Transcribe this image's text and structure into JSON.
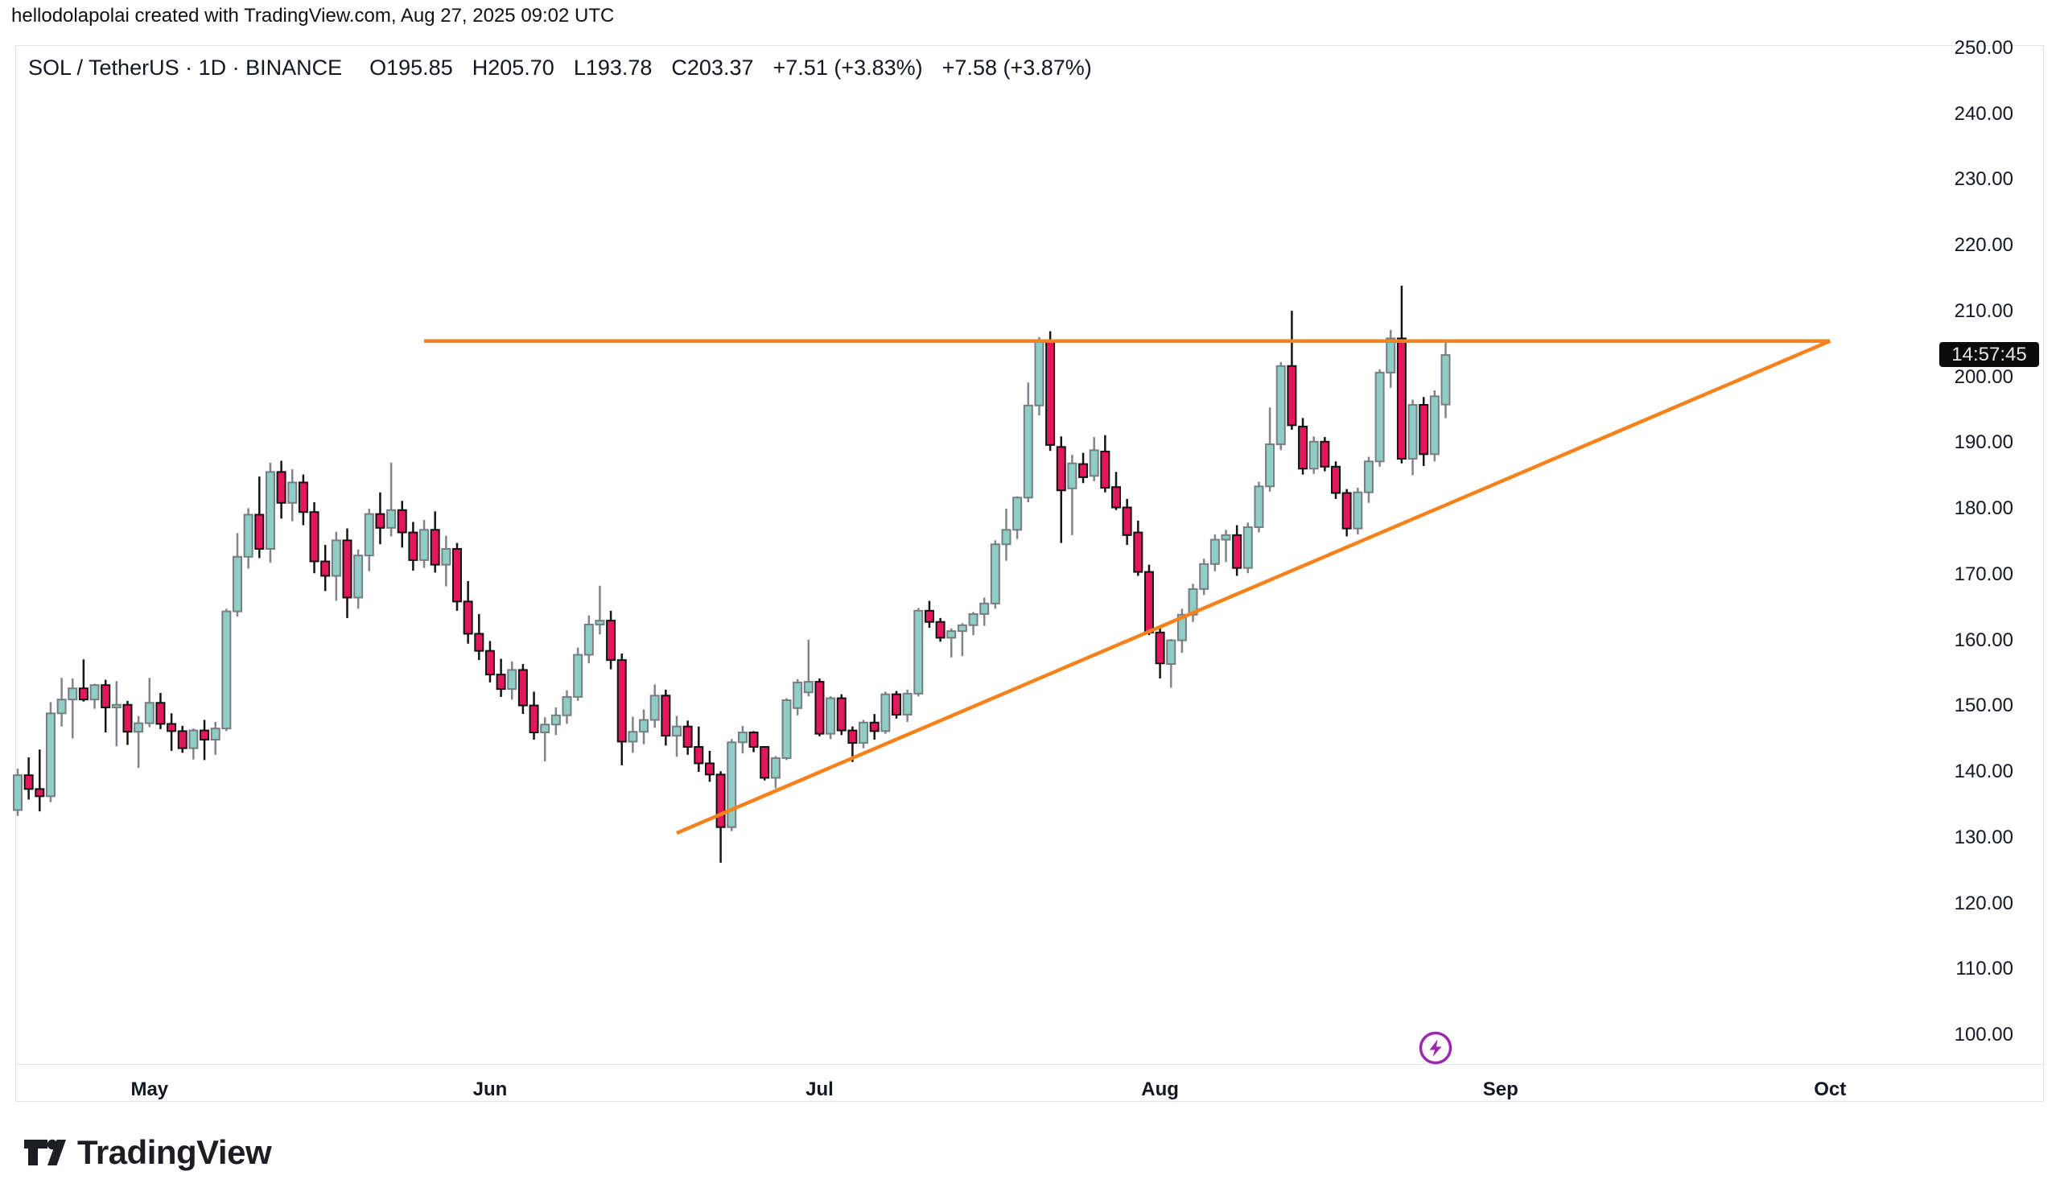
{
  "header": {
    "attribution": "hellodolapolai created with TradingView.com, Aug 27, 2025 09:02 UTC"
  },
  "symbol_bar": {
    "title": "SOL / TetherUS · 1D · BINANCE",
    "open": "O195.85",
    "high": "H205.70",
    "low": "L193.78",
    "close": "C203.37",
    "change_abs": "+7.51 (+3.83%)",
    "change_pct": "+7.58 (+3.87%)"
  },
  "price_axis": {
    "countdown": "14:57:45",
    "tick_values": [
      250,
      240,
      230,
      220,
      210,
      200,
      190,
      180,
      170,
      160,
      150,
      140,
      130,
      120,
      110,
      100
    ]
  },
  "time_axis": {
    "months": [
      {
        "label": "May",
        "date": "2025-05-01"
      },
      {
        "label": "Jun",
        "date": "2025-06-01"
      },
      {
        "label": "Jul",
        "date": "2025-07-01"
      },
      {
        "label": "Aug",
        "date": "2025-08-01"
      },
      {
        "label": "Sep",
        "date": "2025-09-01"
      },
      {
        "label": "Oct",
        "date": "2025-10-01"
      }
    ]
  },
  "footer": {
    "logo_text": "TradingView"
  },
  "colors": {
    "up_body": "#8fcec5",
    "up_border": "#787c84",
    "up_wick": "#81848b",
    "down_body": "#e5175c",
    "down_border": "#121212",
    "down_wick": "#141414",
    "trendline": "#f7821b",
    "text": "#131722",
    "frame": "#e0e3eb",
    "badge_bg": "#0b0b0b",
    "badge_text": "#e6e6e6",
    "lightning": "#9c27b0"
  },
  "chart_data": {
    "type": "candlestick",
    "title": "SOL / TetherUS · 1D · BINANCE",
    "symbol": "SOL/USDT",
    "exchange": "BINANCE",
    "interval": "1D",
    "current": {
      "open": 195.85,
      "high": 205.7,
      "low": 193.78,
      "close": 203.37,
      "change": "+7.51 (+3.83%)",
      "change_ext": "+7.58 (+3.87%)"
    },
    "ylim": [
      100,
      250
    ],
    "y_ticks_step": 10,
    "grid": false,
    "start_date": "2025-04-19",
    "candles": [
      [
        "2025-04-19",
        134.2,
        140.5,
        133.3,
        139.5
      ],
      [
        "2025-04-20",
        139.5,
        142.2,
        135.8,
        137.4
      ],
      [
        "2025-04-21",
        137.4,
        143.4,
        134.0,
        136.3
      ],
      [
        "2025-04-22",
        136.3,
        150.6,
        135.4,
        148.9
      ],
      [
        "2025-04-23",
        148.9,
        154.3,
        146.9,
        151.0
      ],
      [
        "2025-04-24",
        151.0,
        154.2,
        145.1,
        152.7
      ],
      [
        "2025-04-25",
        152.7,
        157.1,
        150.7,
        151.0
      ],
      [
        "2025-04-26",
        151.0,
        153.4,
        149.6,
        153.2
      ],
      [
        "2025-04-27",
        153.2,
        154.0,
        146.0,
        149.8
      ],
      [
        "2025-04-28",
        149.8,
        153.8,
        143.9,
        150.2
      ],
      [
        "2025-04-29",
        150.2,
        150.8,
        144.1,
        146.1
      ],
      [
        "2025-04-30",
        146.1,
        148.5,
        140.6,
        147.4
      ],
      [
        "2025-05-01",
        147.4,
        154.3,
        146.8,
        150.5
      ],
      [
        "2025-05-02",
        150.5,
        152.0,
        146.5,
        147.3
      ],
      [
        "2025-05-03",
        147.3,
        148.9,
        143.2,
        146.2
      ],
      [
        "2025-05-04",
        146.2,
        147.0,
        142.9,
        143.6
      ],
      [
        "2025-05-05",
        143.6,
        146.6,
        141.9,
        146.3
      ],
      [
        "2025-05-06",
        146.3,
        147.9,
        141.8,
        144.9
      ],
      [
        "2025-05-07",
        144.9,
        147.6,
        142.6,
        146.6
      ],
      [
        "2025-05-08",
        146.6,
        164.8,
        146.2,
        164.4
      ],
      [
        "2025-05-09",
        164.4,
        176.3,
        163.6,
        172.7
      ],
      [
        "2025-05-10",
        172.7,
        180.1,
        170.9,
        179.1
      ],
      [
        "2025-05-11",
        179.1,
        184.9,
        172.5,
        173.9
      ],
      [
        "2025-05-12",
        173.9,
        187.0,
        171.8,
        185.6
      ],
      [
        "2025-05-13",
        185.6,
        187.3,
        178.5,
        180.9
      ],
      [
        "2025-05-14",
        180.9,
        186.0,
        178.1,
        184.0
      ],
      [
        "2025-05-15",
        184.0,
        185.2,
        177.5,
        179.5
      ],
      [
        "2025-05-16",
        179.5,
        181.0,
        170.2,
        172.0
      ],
      [
        "2025-05-17",
        172.0,
        174.5,
        167.5,
        169.8
      ],
      [
        "2025-05-18",
        169.8,
        176.5,
        166.0,
        175.2
      ],
      [
        "2025-05-19",
        175.2,
        177.0,
        163.4,
        166.5
      ],
      [
        "2025-05-20",
        166.5,
        173.8,
        164.8,
        172.9
      ],
      [
        "2025-05-21",
        172.9,
        180.0,
        170.5,
        179.2
      ],
      [
        "2025-05-22",
        179.2,
        182.5,
        174.6,
        177.1
      ],
      [
        "2025-05-23",
        177.1,
        187.0,
        175.8,
        179.8
      ],
      [
        "2025-05-24",
        179.8,
        181.2,
        174.1,
        176.4
      ],
      [
        "2025-05-25",
        176.4,
        178.0,
        170.6,
        172.2
      ],
      [
        "2025-05-26",
        172.2,
        178.3,
        171.0,
        176.8
      ],
      [
        "2025-05-27",
        176.8,
        179.6,
        170.3,
        171.5
      ],
      [
        "2025-05-28",
        171.5,
        175.9,
        168.2,
        173.9
      ],
      [
        "2025-05-29",
        173.9,
        174.8,
        164.5,
        165.9
      ],
      [
        "2025-05-30",
        165.9,
        169.0,
        159.5,
        161.0
      ],
      [
        "2025-05-31",
        161.0,
        164.0,
        157.0,
        158.4
      ],
      [
        "2025-06-01",
        158.4,
        159.9,
        153.6,
        154.8
      ],
      [
        "2025-06-02",
        154.8,
        157.2,
        151.4,
        152.6
      ],
      [
        "2025-06-03",
        152.6,
        156.8,
        151.0,
        155.5
      ],
      [
        "2025-06-04",
        155.5,
        156.4,
        148.8,
        150.1
      ],
      [
        "2025-06-05",
        150.1,
        152.2,
        144.9,
        146.0
      ],
      [
        "2025-06-06",
        146.0,
        148.3,
        141.6,
        147.2
      ],
      [
        "2025-06-07",
        147.2,
        149.8,
        145.6,
        148.6
      ],
      [
        "2025-06-08",
        148.6,
        152.4,
        147.3,
        151.4
      ],
      [
        "2025-06-09",
        151.4,
        158.9,
        150.8,
        157.8
      ],
      [
        "2025-06-10",
        157.8,
        163.8,
        156.5,
        162.4
      ],
      [
        "2025-06-11",
        162.4,
        168.3,
        160.9,
        163.0
      ],
      [
        "2025-06-12",
        163.0,
        164.5,
        155.6,
        157.0
      ],
      [
        "2025-06-13",
        157.0,
        158.0,
        141.0,
        144.6
      ],
      [
        "2025-06-14",
        144.6,
        148.4,
        142.9,
        146.1
      ],
      [
        "2025-06-15",
        146.1,
        149.5,
        144.2,
        147.9
      ],
      [
        "2025-06-16",
        147.9,
        153.3,
        146.7,
        151.6
      ],
      [
        "2025-06-17",
        151.6,
        152.5,
        144.0,
        145.5
      ],
      [
        "2025-06-18",
        145.5,
        148.5,
        142.3,
        146.9
      ],
      [
        "2025-06-19",
        146.9,
        147.8,
        142.6,
        143.8
      ],
      [
        "2025-06-20",
        143.8,
        146.9,
        140.0,
        141.3
      ],
      [
        "2025-06-21",
        141.3,
        143.2,
        138.5,
        139.6
      ],
      [
        "2025-06-22",
        139.6,
        140.1,
        126.2,
        131.6
      ],
      [
        "2025-06-23",
        131.6,
        145.0,
        131.0,
        144.5
      ],
      [
        "2025-06-24",
        144.5,
        147.0,
        142.8,
        146.0
      ],
      [
        "2025-06-25",
        146.0,
        146.2,
        143.0,
        143.8
      ],
      [
        "2025-06-26",
        143.8,
        143.9,
        138.7,
        139.1
      ],
      [
        "2025-06-27",
        139.1,
        142.4,
        137.5,
        142.1
      ],
      [
        "2025-06-28",
        142.1,
        151.2,
        141.8,
        150.9
      ],
      [
        "2025-06-29",
        149.7,
        154.1,
        148.6,
        153.6
      ],
      [
        "2025-06-30",
        152.1,
        160.1,
        151.5,
        153.7
      ],
      [
        "2025-07-01",
        153.7,
        154.2,
        145.4,
        145.8
      ],
      [
        "2025-07-02",
        145.8,
        151.5,
        145.0,
        151.2
      ],
      [
        "2025-07-03",
        151.2,
        151.8,
        145.6,
        146.3
      ],
      [
        "2025-07-04",
        146.3,
        146.9,
        141.5,
        144.4
      ],
      [
        "2025-07-05",
        144.4,
        147.9,
        143.6,
        147.5
      ],
      [
        "2025-07-06",
        147.5,
        148.8,
        144.9,
        146.2
      ],
      [
        "2025-07-07",
        146.2,
        152.2,
        145.8,
        151.8
      ],
      [
        "2025-07-08",
        151.8,
        152.3,
        148.1,
        148.7
      ],
      [
        "2025-07-09",
        148.7,
        152.5,
        147.6,
        151.9
      ],
      [
        "2025-07-10",
        151.9,
        164.9,
        151.5,
        164.5
      ],
      [
        "2025-07-11",
        164.5,
        166.0,
        161.9,
        162.8
      ],
      [
        "2025-07-12",
        162.8,
        163.4,
        159.8,
        160.4
      ],
      [
        "2025-07-13",
        160.4,
        161.8,
        157.4,
        161.4
      ],
      [
        "2025-07-14",
        161.4,
        162.6,
        157.6,
        162.3
      ],
      [
        "2025-07-15",
        162.3,
        164.3,
        160.8,
        164.0
      ],
      [
        "2025-07-16",
        164.0,
        166.5,
        162.2,
        165.6
      ],
      [
        "2025-07-17",
        165.6,
        175.2,
        164.8,
        174.6
      ],
      [
        "2025-07-18",
        174.6,
        180.0,
        172.1,
        176.8
      ],
      [
        "2025-07-19",
        176.8,
        181.9,
        175.4,
        181.7
      ],
      [
        "2025-07-20",
        181.7,
        199.2,
        181.0,
        195.7
      ],
      [
        "2025-07-21",
        195.7,
        206.1,
        194.2,
        205.6
      ],
      [
        "2025-07-22",
        205.6,
        207.0,
        188.8,
        189.7
      ],
      [
        "2025-07-23",
        189.4,
        191.0,
        174.8,
        182.8
      ],
      [
        "2025-07-24",
        183.1,
        188.2,
        176.0,
        186.9
      ],
      [
        "2025-07-25",
        186.8,
        188.5,
        183.9,
        184.8
      ],
      [
        "2025-07-26",
        185.0,
        190.9,
        184.2,
        188.9
      ],
      [
        "2025-07-27",
        188.7,
        191.2,
        182.5,
        183.2
      ],
      [
        "2025-07-28",
        183.3,
        185.6,
        179.8,
        180.2
      ],
      [
        "2025-07-29",
        180.2,
        181.5,
        174.5,
        176.0
      ],
      [
        "2025-07-30",
        176.4,
        178.2,
        169.8,
        170.4
      ],
      [
        "2025-07-31",
        170.4,
        171.5,
        160.8,
        161.2
      ],
      [
        "2025-08-01",
        161.2,
        162.0,
        154.2,
        156.5
      ],
      [
        "2025-08-02",
        156.4,
        160.2,
        152.8,
        160.0
      ],
      [
        "2025-08-03",
        160.0,
        164.8,
        158.1,
        163.9
      ],
      [
        "2025-08-04",
        163.9,
        168.6,
        162.8,
        167.8
      ],
      [
        "2025-08-05",
        167.8,
        172.4,
        166.9,
        171.6
      ],
      [
        "2025-08-06",
        171.6,
        176.1,
        170.5,
        175.3
      ],
      [
        "2025-08-07",
        175.3,
        176.8,
        171.9,
        176.0
      ],
      [
        "2025-08-08",
        176.0,
        177.5,
        169.8,
        171.0
      ],
      [
        "2025-08-09",
        171.0,
        177.9,
        170.2,
        177.2
      ],
      [
        "2025-08-10",
        177.2,
        184.1,
        176.4,
        183.4
      ],
      [
        "2025-08-11",
        183.4,
        195.4,
        182.6,
        189.8
      ],
      [
        "2025-08-12",
        189.8,
        202.3,
        188.9,
        201.7
      ],
      [
        "2025-08-13",
        201.7,
        210.1,
        192.0,
        192.7
      ],
      [
        "2025-08-14",
        192.5,
        193.8,
        185.2,
        186.1
      ],
      [
        "2025-08-15",
        186.1,
        191.0,
        185.3,
        190.2
      ],
      [
        "2025-08-16",
        190.2,
        190.9,
        185.7,
        186.4
      ],
      [
        "2025-08-17",
        186.4,
        187.2,
        181.5,
        182.4
      ],
      [
        "2025-08-18",
        182.4,
        183.0,
        175.8,
        177.0
      ],
      [
        "2025-08-19",
        177.0,
        183.2,
        176.1,
        182.5
      ],
      [
        "2025-08-20",
        182.5,
        187.9,
        180.9,
        187.2
      ],
      [
        "2025-08-21",
        187.2,
        201.2,
        186.4,
        200.7
      ],
      [
        "2025-08-22",
        200.7,
        207.2,
        198.4,
        205.9
      ],
      [
        "2025-08-23",
        205.9,
        213.9,
        186.9,
        187.6
      ],
      [
        "2025-08-24",
        187.6,
        196.6,
        185.1,
        195.8
      ],
      [
        "2025-08-25",
        195.8,
        197.0,
        186.5,
        188.3
      ],
      [
        "2025-08-26",
        188.3,
        198.0,
        187.2,
        197.1
      ],
      [
        "2025-08-27",
        195.85,
        205.7,
        193.78,
        203.37
      ]
    ],
    "trendlines": [
      {
        "name": "resistance",
        "type": "horizontal-ray",
        "price": 205.5,
        "from_date": "2025-05-26",
        "to_date": "2025-10-01"
      },
      {
        "name": "ascending-support",
        "type": "trend",
        "from": {
          "date": "2025-06-18",
          "price": 130.7
        },
        "to": {
          "date": "2025-10-01",
          "price": 205.5
        }
      }
    ],
    "legend_position": "none"
  }
}
